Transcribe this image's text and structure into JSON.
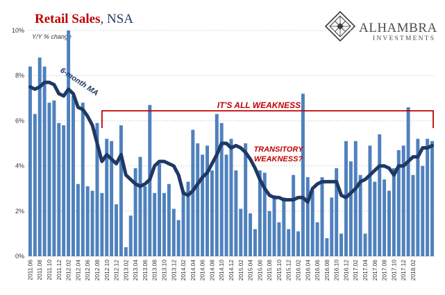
{
  "header": {
    "title": "Retail Sales",
    "title_suffix": ", NSA"
  },
  "logo": {
    "name": "ALHAMBRA",
    "sub": "INVESTMENTS",
    "icon": "diamond-lattice-icon"
  },
  "chart_data": {
    "type": "bar",
    "title": "Retail Sales, NSA",
    "unit_label": "Y/Y % change",
    "ylim": [
      0,
      10
    ],
    "y_ticks": [
      "0%",
      "2%",
      "4%",
      "6%",
      "8%",
      "10%"
    ],
    "grid": "horizontal dotted",
    "bar_color": "#4f81bd",
    "line_color": "#1f3864",
    "annotation_color": "#c00000",
    "x_tick_labels": [
      "2011.06",
      "2011.08",
      "2011.10",
      "2011.12",
      "2012.02",
      "2012.04",
      "2012.06",
      "2012.08",
      "2012.10",
      "2012.12",
      "2013.02",
      "2013.04",
      "2013.06",
      "2013.08",
      "2013.10",
      "2013.12",
      "2014.02",
      "2014.04",
      "2014.06",
      "2014.08",
      "2014.10",
      "2014.12",
      "2015.02",
      "2015.04",
      "2015.06",
      "2015.08",
      "2015.10",
      "2015.12",
      "2016.02",
      "2016.04",
      "2016.06",
      "2016.08",
      "2016.10",
      "2016.12",
      "2017.02",
      "2017.04",
      "2017.06",
      "2017.08",
      "2017.10",
      "2017.12",
      "2018.02"
    ],
    "series": [
      {
        "kind": "bar",
        "values": [
          8.4,
          6.3,
          8.8,
          8.4,
          6.8,
          6.9,
          5.9,
          5.8,
          10.0,
          7.1,
          3.2,
          6.8,
          3.1,
          2.9,
          5.9,
          2.8,
          5.2,
          5.1,
          2.3,
          5.8,
          0.4,
          1.8,
          3.9,
          4.4,
          3.1,
          6.7,
          2.8,
          4.1,
          2.8,
          3.2,
          2.1,
          1.6,
          2.9,
          3.3,
          5.6,
          5.0,
          4.5,
          4.9,
          3.8,
          6.3,
          5.9,
          4.5,
          5.2,
          3.8,
          2.1,
          5.0,
          1.9,
          1.2,
          3.8,
          3.7,
          2.0,
          2.7,
          1.5,
          2.6,
          1.2,
          3.6,
          1.1,
          7.2,
          3.5,
          2.9,
          1.5,
          3.5,
          0.8,
          2.6,
          3.9,
          1.0,
          5.1,
          4.2,
          5.1,
          3.6,
          1.0,
          4.9,
          3.3,
          5.4,
          3.4,
          2.9,
          3.9,
          4.7,
          4.9,
          6.6,
          3.6,
          5.2,
          4.0,
          5.2,
          5.1
        ]
      },
      {
        "kind": "line",
        "name": "6-month MA",
        "values": [
          7.5,
          7.4,
          7.5,
          7.7,
          7.7,
          7.6,
          7.2,
          7.1,
          7.4,
          7.2,
          6.6,
          6.5,
          6.2,
          5.8,
          5.0,
          4.2,
          4.5,
          4.3,
          4.1,
          4.5,
          3.6,
          3.4,
          3.2,
          3.1,
          3.2,
          3.4,
          4.0,
          4.2,
          4.2,
          4.1,
          4.0,
          3.6,
          2.8,
          2.7,
          2.9,
          3.2,
          3.5,
          3.7,
          4.1,
          4.5,
          5.0,
          5.0,
          4.8,
          4.9,
          4.8,
          4.6,
          4.3,
          3.9,
          3.4,
          3.0,
          2.7,
          2.6,
          2.6,
          2.5,
          2.5,
          2.5,
          2.6,
          2.6,
          2.4,
          3.0,
          3.2,
          3.3,
          3.3,
          3.3,
          3.3,
          2.7,
          2.6,
          2.8,
          3.0,
          3.3,
          3.4,
          3.6,
          3.8,
          4.0,
          4.0,
          3.9,
          3.6,
          4.0,
          4.0,
          4.2,
          4.4,
          4.4,
          4.8,
          4.8,
          4.9
        ]
      }
    ],
    "annotations": [
      {
        "text": "6-month MA",
        "color": "#1f3864"
      },
      {
        "text": "IT'S ALL WEAKNESS",
        "color": "#c00000"
      },
      {
        "text": "TRANSITORY",
        "color": "#c00000"
      },
      {
        "text": "WEAKNESS?",
        "color": "#c00000"
      }
    ]
  }
}
